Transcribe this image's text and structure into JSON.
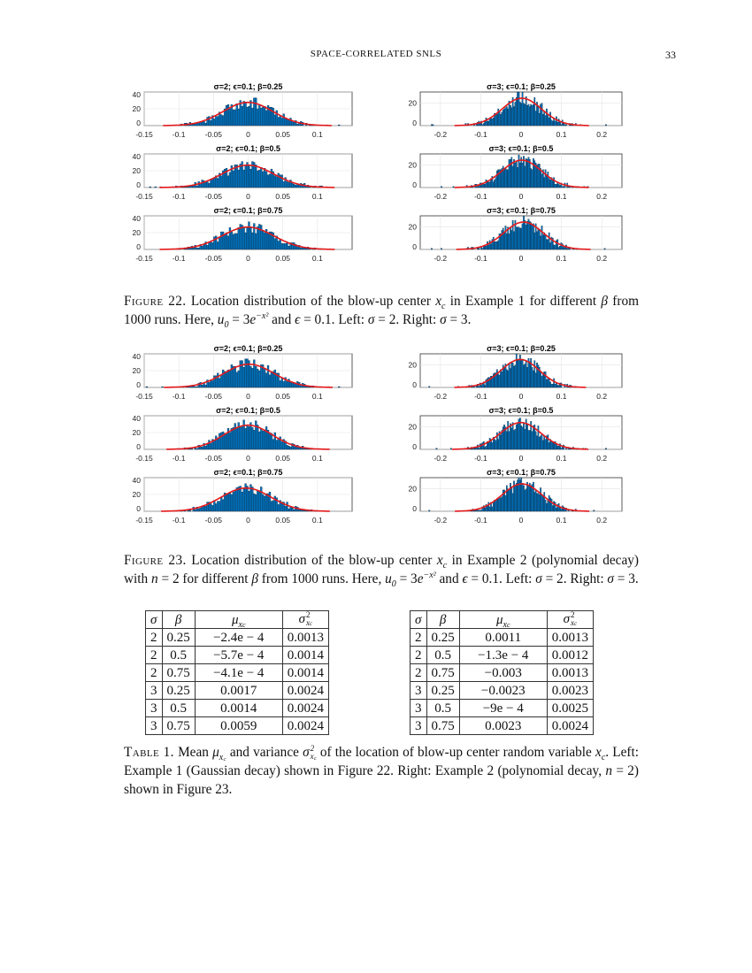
{
  "header": {
    "running_title": "SPACE-CORRELATED SNLS",
    "page_number": "33"
  },
  "figures": [
    {
      "label": "Figure 22.",
      "caption": [
        {
          "t": " Location distribution of the blow-up center "
        },
        {
          "m": "x",
          "sub": "c"
        },
        {
          "t": " in Example 1 for different "
        },
        {
          "m": "β"
        },
        {
          "t": " from 1000 runs. Here, "
        },
        {
          "m": "u",
          "sub": "0"
        },
        {
          "t": " = 3"
        },
        {
          "m": "e",
          "sup": "−x²"
        },
        {
          "t": " and "
        },
        {
          "m": "ϵ"
        },
        {
          "t": " = 0.1. Left: "
        },
        {
          "m": "σ"
        },
        {
          "t": " = 2. Right: "
        },
        {
          "m": "σ"
        },
        {
          "t": " = 3."
        }
      ]
    },
    {
      "label": "Figure 23.",
      "caption": [
        {
          "t": " Location distribution of the blow-up center "
        },
        {
          "m": "x",
          "sub": "c"
        },
        {
          "t": " in Example 2 (polynomial decay) with "
        },
        {
          "m": "n"
        },
        {
          "t": " = 2 for different "
        },
        {
          "m": "β"
        },
        {
          "t": " from 1000 runs. Here, "
        },
        {
          "m": "u",
          "sub": "0"
        },
        {
          "t": " = 3"
        },
        {
          "m": "e",
          "sup": "−x²"
        },
        {
          "t": " and "
        },
        {
          "m": "ϵ"
        },
        {
          "t": " = 0.1. Left: "
        },
        {
          "m": "σ"
        },
        {
          "t": " = 2. Right: "
        },
        {
          "m": "σ"
        },
        {
          "t": " = 3."
        }
      ]
    }
  ],
  "chart_data": [
    {
      "figure": "22",
      "type": "bar",
      "title": "σ=2; ϵ=0.1; β=0.25",
      "xlim": [
        -0.15,
        0.15
      ],
      "xticks": [
        -0.15,
        -0.1,
        -0.05,
        0,
        0.05,
        0.1
      ],
      "ylim": [
        0,
        40
      ],
      "yticks": [
        0,
        20,
        40
      ],
      "fit": {
        "mean": -0.00024,
        "variance": 0.0013
      },
      "runs": 1000,
      "bar_color": "#0072BD",
      "fit_color": "#E41A1C"
    },
    {
      "figure": "22",
      "type": "bar",
      "title": "σ=2; ϵ=0.1; β=0.5",
      "xlim": [
        -0.15,
        0.15
      ],
      "xticks": [
        -0.15,
        -0.1,
        -0.05,
        0,
        0.05,
        0.1
      ],
      "ylim": [
        0,
        40
      ],
      "yticks": [
        0,
        20,
        40
      ],
      "fit": {
        "mean": -0.00057,
        "variance": 0.0014
      },
      "runs": 1000,
      "bar_color": "#0072BD",
      "fit_color": "#E41A1C"
    },
    {
      "figure": "22",
      "type": "bar",
      "title": "σ=2; ϵ=0.1; β=0.75",
      "xlim": [
        -0.15,
        0.15
      ],
      "xticks": [
        -0.15,
        -0.1,
        -0.05,
        0,
        0.05,
        0.1
      ],
      "ylim": [
        0,
        40
      ],
      "yticks": [
        0,
        20,
        40
      ],
      "fit": {
        "mean": -0.00041,
        "variance": 0.0014
      },
      "runs": 1000,
      "bar_color": "#0072BD",
      "fit_color": "#E41A1C"
    },
    {
      "figure": "22",
      "type": "bar",
      "title": "σ=3; ϵ=0.1; β=0.25",
      "xlim": [
        -0.25,
        0.25
      ],
      "xticks": [
        -0.2,
        -0.1,
        0,
        0.1,
        0.2
      ],
      "ylim": [
        0,
        30
      ],
      "yticks": [
        0,
        20
      ],
      "fit": {
        "mean": 0.0017,
        "variance": 0.0024
      },
      "runs": 1000,
      "bar_color": "#0072BD",
      "fit_color": "#E41A1C"
    },
    {
      "figure": "22",
      "type": "bar",
      "title": "σ=3; ϵ=0.1; β=0.5",
      "xlim": [
        -0.25,
        0.25
      ],
      "xticks": [
        -0.2,
        -0.1,
        0,
        0.1,
        0.2
      ],
      "ylim": [
        0,
        30
      ],
      "yticks": [
        0,
        20
      ],
      "fit": {
        "mean": 0.0014,
        "variance": 0.0024
      },
      "runs": 1000,
      "bar_color": "#0072BD",
      "fit_color": "#E41A1C"
    },
    {
      "figure": "22",
      "type": "bar",
      "title": "σ=3; ϵ=0.1; β=0.75",
      "xlim": [
        -0.25,
        0.25
      ],
      "xticks": [
        -0.2,
        -0.1,
        0,
        0.1,
        0.2
      ],
      "ylim": [
        0,
        30
      ],
      "yticks": [
        0,
        20
      ],
      "fit": {
        "mean": 0.0059,
        "variance": 0.0024
      },
      "runs": 1000,
      "bar_color": "#0072BD",
      "fit_color": "#E41A1C"
    },
    {
      "figure": "23",
      "type": "bar",
      "title": "σ=2; ϵ=0.1; β=0.25",
      "xlim": [
        -0.15,
        0.15
      ],
      "xticks": [
        -0.15,
        -0.1,
        -0.05,
        0,
        0.05,
        0.1
      ],
      "ylim": [
        0,
        40
      ],
      "yticks": [
        0,
        20,
        40
      ],
      "fit": {
        "mean": 0.0011,
        "variance": 0.0013
      },
      "runs": 1000,
      "bar_color": "#0072BD",
      "fit_color": "#E41A1C"
    },
    {
      "figure": "23",
      "type": "bar",
      "title": "σ=2; ϵ=0.1; β=0.5",
      "xlim": [
        -0.15,
        0.15
      ],
      "xticks": [
        -0.15,
        -0.1,
        -0.05,
        0,
        0.05,
        0.1
      ],
      "ylim": [
        0,
        40
      ],
      "yticks": [
        0,
        20,
        40
      ],
      "fit": {
        "mean": -0.00013,
        "variance": 0.0012
      },
      "runs": 1000,
      "bar_color": "#0072BD",
      "fit_color": "#E41A1C"
    },
    {
      "figure": "23",
      "type": "bar",
      "title": "σ=2; ϵ=0.1; β=0.75",
      "xlim": [
        -0.15,
        0.15
      ],
      "xticks": [
        -0.15,
        -0.1,
        -0.05,
        0,
        0.05,
        0.1
      ],
      "ylim": [
        0,
        40
      ],
      "yticks": [
        0,
        20,
        40
      ],
      "fit": {
        "mean": -0.003,
        "variance": 0.0013
      },
      "runs": 1000,
      "bar_color": "#0072BD",
      "fit_color": "#E41A1C"
    },
    {
      "figure": "23",
      "type": "bar",
      "title": "σ=3; ϵ=0.1; β=0.25",
      "xlim": [
        -0.25,
        0.25
      ],
      "xticks": [
        -0.2,
        -0.1,
        0,
        0.1,
        0.2
      ],
      "ylim": [
        0,
        30
      ],
      "yticks": [
        0,
        20
      ],
      "fit": {
        "mean": -0.0023,
        "variance": 0.0023
      },
      "runs": 1000,
      "bar_color": "#0072BD",
      "fit_color": "#E41A1C"
    },
    {
      "figure": "23",
      "type": "bar",
      "title": "σ=3; ϵ=0.1; β=0.5",
      "xlim": [
        -0.25,
        0.25
      ],
      "xticks": [
        -0.2,
        -0.1,
        0,
        0.1,
        0.2
      ],
      "ylim": [
        0,
        30
      ],
      "yticks": [
        0,
        20
      ],
      "fit": {
        "mean": -0.0009,
        "variance": 0.0025
      },
      "runs": 1000,
      "bar_color": "#0072BD",
      "fit_color": "#E41A1C"
    },
    {
      "figure": "23",
      "type": "bar",
      "title": "σ=3; ϵ=0.1; β=0.75",
      "xlim": [
        -0.25,
        0.25
      ],
      "xticks": [
        -0.2,
        -0.1,
        0,
        0.1,
        0.2
      ],
      "ylim": [
        0,
        30
      ],
      "yticks": [
        0,
        20
      ],
      "fit": {
        "mean": 0.0023,
        "variance": 0.0024
      },
      "runs": 1000,
      "bar_color": "#0072BD",
      "fit_color": "#E41A1C"
    }
  ],
  "tables": [
    {
      "rows": [
        [
          "2",
          "0.25",
          "−2.4e − 4",
          "0.0013"
        ],
        [
          "2",
          "0.5",
          "−5.7e − 4",
          "0.0014"
        ],
        [
          "2",
          "0.75",
          "−4.1e − 4",
          "0.0014"
        ],
        [
          "3",
          "0.25",
          "0.0017",
          "0.0024"
        ],
        [
          "3",
          "0.5",
          "0.0014",
          "0.0024"
        ],
        [
          "3",
          "0.75",
          "0.0059",
          "0.0024"
        ]
      ]
    },
    {
      "rows": [
        [
          "2",
          "0.25",
          "0.0011",
          "0.0013"
        ],
        [
          "2",
          "0.5",
          "−1.3e − 4",
          "0.0012"
        ],
        [
          "2",
          "0.75",
          "−0.003",
          "0.0013"
        ],
        [
          "3",
          "0.25",
          "−0.0023",
          "0.0023"
        ],
        [
          "3",
          "0.5",
          "−9e − 4",
          "0.0025"
        ],
        [
          "3",
          "0.75",
          "0.0023",
          "0.0024"
        ]
      ]
    }
  ],
  "table_headers": {
    "sigma": "σ",
    "beta": "β",
    "mu": "μ",
    "var": "σ",
    "var_sup": "2",
    "x": "x",
    "c": "c"
  },
  "table_caption": {
    "label": "Table 1.",
    "caption": [
      {
        "t": " Mean "
      },
      {
        "m": "μ",
        "sub": "x꜀"
      },
      {
        "t": " and variance "
      },
      {
        "m": "σ",
        "sup": "2",
        "sub": "x꜀"
      },
      {
        "t": " of the location of blow-up center random variable "
      },
      {
        "m": "x",
        "sub": "c"
      },
      {
        "t": ". Left: Example 1 (Gaussian decay) shown in Figure 22. Right: Example 2 (polynomial decay, "
      },
      {
        "m": "n"
      },
      {
        "t": " = 2) shown in Figure 23."
      }
    ]
  }
}
